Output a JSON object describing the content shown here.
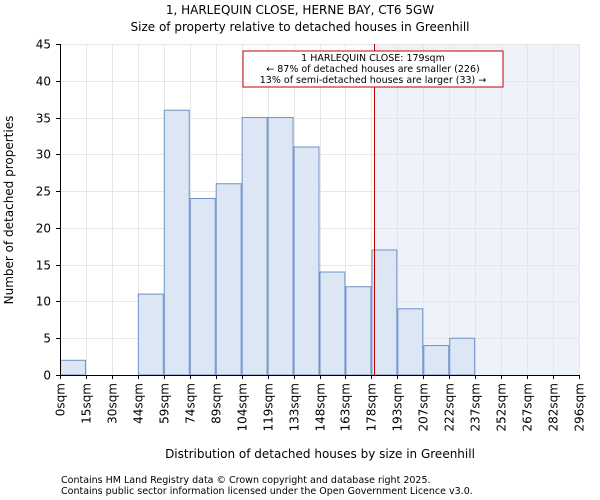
{
  "title_line1": "1, HARLEQUIN CLOSE, HERNE BAY, CT6 5GW",
  "title_line2": "Size of property relative to detached houses in Greenhill",
  "footer_line1": "Contains HM Land Registry data © Crown copyright and database right 2025.",
  "footer_line2": "Contains public sector information licensed under the Open Government Licence v3.0.",
  "colors": {
    "bar_fill": "#dce6f4",
    "bar_stroke": "#6f91c4",
    "marker": "#c00000",
    "shade": "#eef2fa",
    "grid": "#e6e6e6",
    "axis": "#000000",
    "annotation_border": "#c00000"
  },
  "chart_data": {
    "type": "bar",
    "title": "Size of property relative to detached houses in Greenhill",
    "xlabel": "Distribution of detached houses by size in Greenhill",
    "ylabel": "Number of detached properties",
    "ylim": [
      0,
      45
    ],
    "yticks": [
      0,
      5,
      10,
      15,
      20,
      25,
      30,
      35,
      40,
      45
    ],
    "bin_edges": [
      0,
      15,
      30,
      44,
      59,
      74,
      89,
      104,
      119,
      133,
      148,
      163,
      178,
      193,
      207,
      222,
      237,
      252,
      267,
      282,
      296
    ],
    "tick_labels": [
      "0sqm",
      "15sqm",
      "30sqm",
      "44sqm",
      "59sqm",
      "74sqm",
      "89sqm",
      "104sqm",
      "119sqm",
      "133sqm",
      "148sqm",
      "163sqm",
      "178sqm",
      "193sqm",
      "207sqm",
      "222sqm",
      "237sqm",
      "252sqm",
      "267sqm",
      "282sqm",
      "296sqm"
    ],
    "values": [
      2,
      0,
      0,
      11,
      36,
      24,
      26,
      35,
      35,
      31,
      14,
      12,
      17,
      9,
      4,
      5,
      0,
      0,
      0,
      0
    ],
    "marker_value": 179,
    "annotation": {
      "line1": "1 HARLEQUIN CLOSE: 179sqm",
      "line2": "← 87% of detached houses are smaller (226)",
      "line3": "13% of semi-detached houses are larger (33) →"
    }
  }
}
